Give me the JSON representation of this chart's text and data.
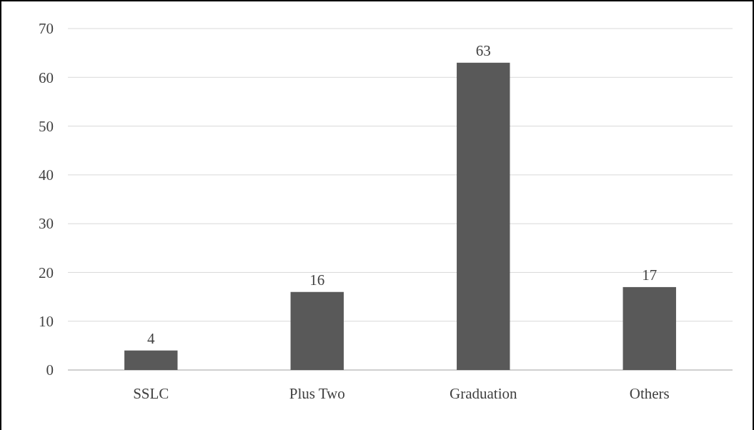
{
  "chart_data": {
    "type": "bar",
    "categories": [
      "SSLC",
      "Plus Two",
      "Graduation",
      "Others"
    ],
    "values": [
      4,
      16,
      63,
      17
    ],
    "color": "#595959",
    "ylim": [
      0,
      70
    ],
    "yticks": [
      0,
      10,
      20,
      30,
      40,
      50,
      60,
      70
    ],
    "grid": "y",
    "data_labels": true
  }
}
